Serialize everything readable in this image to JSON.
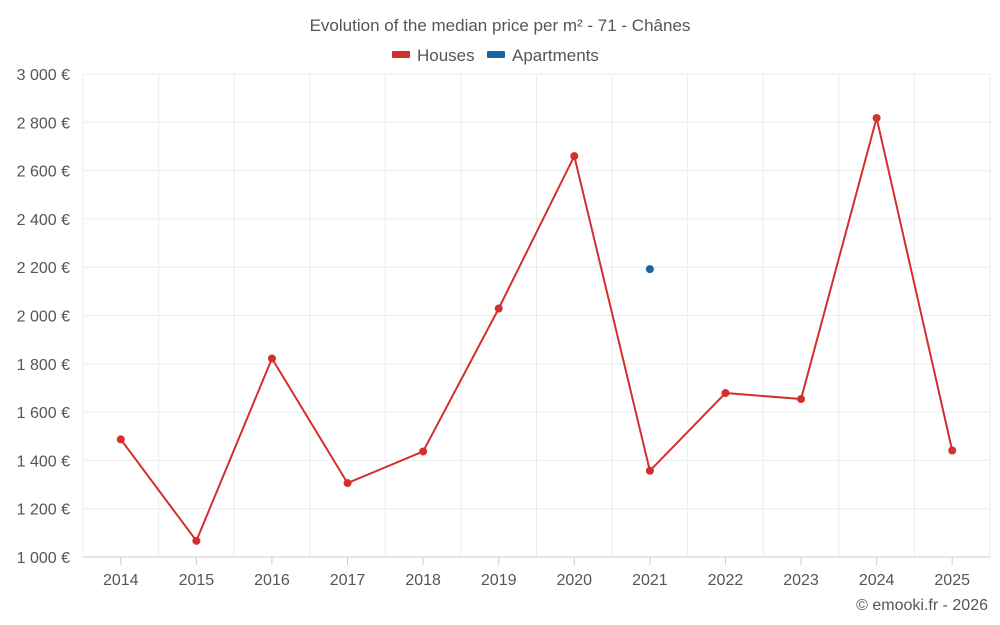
{
  "chart_data": {
    "type": "line",
    "title": "Evolution of the median price per m² - 71 - Chânes",
    "categories": [
      "2014",
      "2015",
      "2016",
      "2017",
      "2018",
      "2019",
      "2020",
      "2021",
      "2022",
      "2023",
      "2024",
      "2025"
    ],
    "series": [
      {
        "name": "Houses",
        "color": "#d32f2f",
        "values": [
          1487,
          1067,
          1822,
          1306,
          1437,
          2029,
          2660,
          1357,
          1679,
          1654,
          2818,
          1441
        ]
      },
      {
        "name": "Apartments",
        "color": "#1565a0",
        "values": [
          null,
          null,
          null,
          null,
          null,
          null,
          null,
          2192,
          null,
          null,
          null,
          null
        ]
      }
    ],
    "y_ticks": [
      {
        "value": 1000,
        "label": "1 000 €"
      },
      {
        "value": 1200,
        "label": "1 200 €"
      },
      {
        "value": 1400,
        "label": "1 400 €"
      },
      {
        "value": 1600,
        "label": "1 600 €"
      },
      {
        "value": 1800,
        "label": "1 800 €"
      },
      {
        "value": 2000,
        "label": "2 000 €"
      },
      {
        "value": 2200,
        "label": "2 200 €"
      },
      {
        "value": 2400,
        "label": "2 400 €"
      },
      {
        "value": 2600,
        "label": "2 600 €"
      },
      {
        "value": 2800,
        "label": "2 800 €"
      },
      {
        "value": 3000,
        "label": "3 000 €"
      }
    ],
    "ylim": [
      1000,
      3000
    ],
    "xlabel": "",
    "ylabel": "",
    "legend_position": "top-center",
    "grid": true
  },
  "footer": {
    "copyright": "© emooki.fr - 2026"
  }
}
